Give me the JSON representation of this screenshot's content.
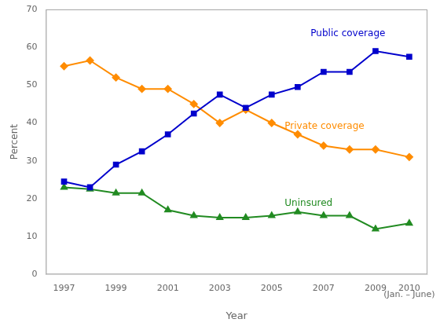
{
  "chart_data": {
    "type": "line",
    "x_label": "Year",
    "y_label": "Percent",
    "x": [
      1997,
      1998,
      1999,
      2000,
      2001,
      2002,
      2003,
      2004,
      2005,
      2006,
      2007,
      2008,
      2009,
      2010.3
    ],
    "series": [
      {
        "name": "Public coverage",
        "color": "#0000CC",
        "marker": "square",
        "values": [
          24.5,
          23.0,
          29.0,
          32.5,
          37.0,
          42.5,
          47.5,
          44.0,
          47.5,
          49.5,
          53.5,
          53.5,
          59.0,
          57.5
        ]
      },
      {
        "name": "Private coverage",
        "color": "#FF8C00",
        "marker": "diamond",
        "values": [
          55.0,
          56.5,
          52.0,
          49.0,
          49.0,
          45.0,
          40.0,
          43.5,
          40.0,
          37.0,
          34.0,
          33.0,
          33.0,
          31.0
        ]
      },
      {
        "name": "Uninsured",
        "color": "#228B22",
        "marker": "triangle",
        "values": [
          23.0,
          22.5,
          21.5,
          21.5,
          17.0,
          15.5,
          15.0,
          15.0,
          15.5,
          16.5,
          15.5,
          15.5,
          12.0,
          13.5
        ]
      }
    ],
    "xlim": [
      1996.3,
      2011.0
    ],
    "xticks": [
      1997,
      1999,
      2001,
      2003,
      2005,
      2007,
      2009,
      {
        "value": 2010.3,
        "label": "2010"
      }
    ],
    "ylim": [
      0,
      70
    ],
    "yticks": [
      0,
      10,
      20,
      30,
      40,
      50,
      60,
      70
    ],
    "grid": false,
    "annotations": [
      {
        "text": "Public coverage",
        "x": 2006.5,
        "y": 63,
        "color": "#0000CC"
      },
      {
        "text": "Private coverage",
        "x": 2005.5,
        "y": 38.5,
        "color": "#FF8C00"
      },
      {
        "text": "Uninsured",
        "x": 2005.5,
        "y": 18.0,
        "color": "#228B22"
      },
      {
        "text": "(Jan. – June)",
        "x": 2010.3
      }
    ]
  }
}
